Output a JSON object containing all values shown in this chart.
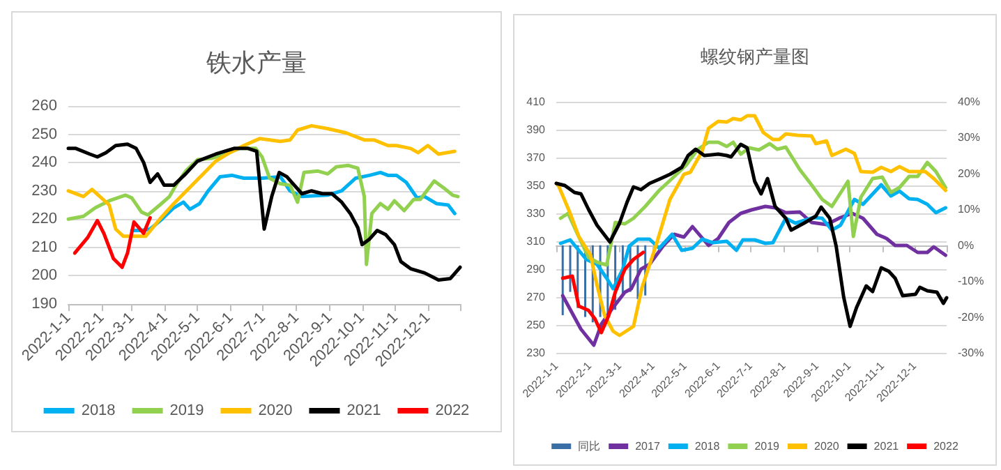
{
  "chart_data": [
    {
      "type": "line",
      "title": "铁水产量",
      "xlim": [
        "2022-01-01",
        "2022-12-31"
      ],
      "xticks": [
        {
          "value": "2022-01-01",
          "label": "2022-1-1"
        },
        {
          "value": "2022-02-01",
          "label": "2022-2-1"
        },
        {
          "value": "2022-03-01",
          "label": "2022-3-1"
        },
        {
          "value": "2022-04-01",
          "label": "2022-4-1"
        },
        {
          "value": "2022-05-01",
          "label": "2022-5-1"
        },
        {
          "value": "2022-06-01",
          "label": "2022-6-1"
        },
        {
          "value": "2022-07-01",
          "label": "2022-7-1"
        },
        {
          "value": "2022-08-01",
          "label": "2022-8-1"
        },
        {
          "value": "2022-09-01",
          "label": "2022-9-1"
        },
        {
          "value": "2022-10-01",
          "label": "2022-10-1"
        },
        {
          "value": "2022-11-01",
          "label": "2022-11-1"
        },
        {
          "value": "2022-12-01",
          "label": "2022-12-1"
        },
        {
          "value": "2022-12-31",
          "label": null
        }
      ],
      "ylim": [
        190,
        260
      ],
      "yticks": [
        190,
        200,
        210,
        220,
        230,
        240,
        250,
        260
      ],
      "grid": "y",
      "legend": "bottom",
      "marker": "none",
      "line_style": "solid",
      "series": [
        {
          "name": "2018",
          "color": "#00b0f0",
          "x": [
            "2022-03-01",
            "2022-03-10",
            "2022-03-18",
            "2022-03-29",
            "2022-04-09",
            "2022-04-18",
            "2022-04-24",
            "2022-05-03",
            "2022-05-11",
            "2022-05-22",
            "2022-06-02",
            "2022-06-13",
            "2022-06-30",
            "2022-07-17",
            "2022-07-26",
            "2022-08-06",
            "2022-08-30",
            "2022-09-12",
            "2022-09-25",
            "2022-10-08",
            "2022-10-18",
            "2022-10-25",
            "2022-11-02",
            "2022-11-11",
            "2022-11-21",
            "2022-11-28",
            "2022-12-09",
            "2022-12-20",
            "2022-12-26"
          ],
          "values": [
            216,
            216,
            216.5,
            220,
            224,
            226,
            223.5,
            225.5,
            230,
            235,
            235.5,
            234.5,
            234.5,
            235,
            230,
            228,
            228.5,
            230,
            234.5,
            235.5,
            236.5,
            235.5,
            235.5,
            233,
            227.5,
            228,
            225.5,
            225,
            222
          ]
        },
        {
          "name": "2019",
          "color": "#92d050",
          "x": [
            "2022-01-01",
            "2022-01-15",
            "2022-01-26",
            "2022-02-08",
            "2022-02-23",
            "2022-03-01",
            "2022-03-10",
            "2022-03-16",
            "2022-03-27",
            "2022-04-05",
            "2022-04-11",
            "2022-04-20",
            "2022-05-01",
            "2022-05-14",
            "2022-05-27",
            "2022-06-09",
            "2022-06-24",
            "2022-06-30",
            "2022-07-07",
            "2022-07-17",
            "2022-07-26",
            "2022-08-02",
            "2022-08-08",
            "2022-08-21",
            "2022-08-30",
            "2022-09-07",
            "2022-09-18",
            "2022-09-27",
            "2022-10-03",
            "2022-10-05",
            "2022-10-10",
            "2022-10-18",
            "2022-10-25",
            "2022-10-31",
            "2022-11-09",
            "2022-11-18",
            "2022-11-24",
            "2022-12-07",
            "2022-12-16",
            "2022-12-24",
            "2022-12-29"
          ],
          "values": [
            220,
            221,
            224,
            226.5,
            228.5,
            227.5,
            222.5,
            221.5,
            225,
            228,
            232,
            237,
            241,
            241.5,
            243,
            245,
            245,
            242,
            234.5,
            232.5,
            232,
            226,
            236.5,
            237,
            236,
            238.5,
            239,
            238,
            228,
            204,
            222,
            225.5,
            223.5,
            226.5,
            223,
            227,
            227,
            233.5,
            231,
            228.5,
            228
          ]
        },
        {
          "name": "2020",
          "color": "#ffc000",
          "x": [
            "2022-01-01",
            "2022-01-15",
            "2022-01-23",
            "2022-02-08",
            "2022-02-14",
            "2022-02-21",
            "2022-03-05",
            "2022-03-14",
            "2022-03-27",
            "2022-04-09",
            "2022-04-22",
            "2022-05-05",
            "2022-05-18",
            "2022-05-31",
            "2022-06-13",
            "2022-06-28",
            "2022-07-17",
            "2022-07-26",
            "2022-08-02",
            "2022-08-15",
            "2022-08-30",
            "2022-09-16",
            "2022-10-03",
            "2022-10-12",
            "2022-10-25",
            "2022-11-02",
            "2022-11-15",
            "2022-11-22",
            "2022-12-01",
            "2022-12-11",
            "2022-12-26"
          ],
          "values": [
            230,
            228,
            230.5,
            225,
            216.5,
            214,
            214,
            214,
            220,
            225.5,
            230.5,
            235.5,
            240.5,
            243.5,
            246,
            248.5,
            247.5,
            248,
            251.5,
            253,
            252,
            250.5,
            248,
            248,
            246,
            246,
            245,
            243.5,
            246,
            243,
            244
          ]
        },
        {
          "name": "2021",
          "color": "#000000",
          "x": [
            "2022-01-01",
            "2022-01-08",
            "2022-01-21",
            "2022-01-28",
            "2022-02-05",
            "2022-02-14",
            "2022-02-25",
            "2022-03-05",
            "2022-03-12",
            "2022-03-18",
            "2022-03-25",
            "2022-03-31",
            "2022-04-09",
            "2022-04-20",
            "2022-05-01",
            "2022-05-18",
            "2022-06-04",
            "2022-06-17",
            "2022-06-25",
            "2022-07-02",
            "2022-07-09",
            "2022-07-16",
            "2022-07-23",
            "2022-07-30",
            "2022-08-06",
            "2022-08-15",
            "2022-08-25",
            "2022-09-03",
            "2022-09-12",
            "2022-09-20",
            "2022-09-27",
            "2022-10-01",
            "2022-10-08",
            "2022-10-15",
            "2022-10-23",
            "2022-10-31",
            "2022-11-06",
            "2022-11-15",
            "2022-11-28",
            "2022-12-11",
            "2022-12-22",
            "2022-12-31"
          ],
          "values": [
            245,
            245,
            243,
            242,
            243.5,
            246,
            246.5,
            245,
            240,
            233,
            236,
            232,
            232,
            236,
            240.5,
            243,
            245,
            245,
            244,
            216.5,
            228,
            236.5,
            235,
            232,
            229,
            230,
            229,
            229,
            226,
            222,
            217,
            211,
            213,
            216,
            214.5,
            211,
            205,
            202.5,
            201,
            198.5,
            199,
            203
          ]
        },
        {
          "name": "2022",
          "color": "#ff0000",
          "x": [
            "2022-01-07",
            "2022-01-19",
            "2022-01-28",
            "2022-02-03",
            "2022-02-12",
            "2022-02-20",
            "2022-02-25",
            "2022-03-03",
            "2022-03-12",
            "2022-03-18"
          ],
          "values": [
            208,
            213.5,
            219.5,
            215,
            206,
            203,
            208,
            219,
            215,
            220.5
          ]
        }
      ]
    },
    {
      "type": "line",
      "title": "螺纹钢产量图",
      "xlim": [
        "2022-01-01",
        "2022-12-31"
      ],
      "xticks": [
        {
          "value": "2022-01-01",
          "label": "2022-1-1"
        },
        {
          "value": "2022-02-01",
          "label": "2022-2-1"
        },
        {
          "value": "2022-03-01",
          "label": "2022-3-1"
        },
        {
          "value": "2022-04-01",
          "label": "2022-4-1"
        },
        {
          "value": "2022-05-01",
          "label": "2022-5-1"
        },
        {
          "value": "2022-06-01",
          "label": "2022-6-1"
        },
        {
          "value": "2022-07-01",
          "label": "2022-7-1"
        },
        {
          "value": "2022-08-01",
          "label": "2022-8-1"
        },
        {
          "value": "2022-09-01",
          "label": "2022-9-1"
        },
        {
          "value": "2022-10-01",
          "label": "2022-10-1"
        },
        {
          "value": "2022-11-01",
          "label": "2022-11-1"
        },
        {
          "value": "2022-12-01",
          "label": "2022-12-1"
        },
        {
          "value": "2022-12-31",
          "label": null
        }
      ],
      "ylim": [
        230,
        410
      ],
      "yticks": [
        230,
        250,
        270,
        290,
        310,
        330,
        350,
        370,
        390,
        410
      ],
      "y2lim": [
        -30,
        40
      ],
      "y2ticks": [
        {
          "value": -30,
          "label": "-30%"
        },
        {
          "value": -20,
          "label": "-20%"
        },
        {
          "value": -10,
          "label": "-10%"
        },
        {
          "value": 0,
          "label": "0%"
        },
        {
          "value": 10,
          "label": "10%"
        },
        {
          "value": 20,
          "label": "20%"
        },
        {
          "value": 30,
          "label": "30%"
        },
        {
          "value": 40,
          "label": "40%"
        }
      ],
      "grid": "y",
      "legend": "bottom",
      "marker": "none",
      "line_style": "solid",
      "series": [
        {
          "name": "同比",
          "type": "bar",
          "axis": "y2",
          "color": "#3a6ea5",
          "x": [
            "2022-01-07",
            "2022-01-14",
            "2022-01-21",
            "2022-01-28",
            "2022-02-04",
            "2022-02-11",
            "2022-02-18",
            "2022-02-25",
            "2022-03-04",
            "2022-03-11",
            "2022-03-18",
            "2022-03-25"
          ],
          "values": [
            -19.5,
            -13,
            -17.5,
            -20,
            -21.5,
            -20,
            -22,
            -18,
            -14,
            -13,
            -15,
            -14
          ]
        },
        {
          "name": "2017",
          "color": "#7030a0",
          "x": [
            "2022-01-07",
            "2022-01-24",
            "2022-02-05",
            "2022-02-12",
            "2022-02-21",
            "2022-03-06",
            "2022-03-12",
            "2022-03-21",
            "2022-03-29",
            "2022-04-11",
            "2022-04-21",
            "2022-04-30",
            "2022-05-08",
            "2022-05-23",
            "2022-06-01",
            "2022-06-11",
            "2022-06-22",
            "2022-07-02",
            "2022-07-15",
            "2022-07-24",
            "2022-08-03",
            "2022-08-16",
            "2022-08-27",
            "2022-09-10",
            "2022-09-23",
            "2022-10-04",
            "2022-10-14",
            "2022-10-27",
            "2022-11-05",
            "2022-11-13",
            "2022-11-24",
            "2022-12-04",
            "2022-12-13",
            "2022-12-19",
            "2022-12-30"
          ],
          "values": [
            271,
            247,
            235.5,
            250.5,
            260.5,
            273.5,
            276,
            290,
            293.5,
            307,
            315,
            313,
            320.5,
            307,
            312,
            323.5,
            330,
            332.5,
            335,
            334,
            330.5,
            331,
            323.5,
            322,
            327,
            330,
            326.5,
            315,
            312,
            307,
            307,
            302,
            302,
            306,
            300
          ]
        },
        {
          "name": "2018",
          "color": "#00b0f0",
          "x": [
            "2022-01-05",
            "2022-01-14",
            "2022-01-22",
            "2022-01-29",
            "2022-02-08",
            "2022-02-17",
            "2022-02-23",
            "2022-03-04",
            "2022-03-10",
            "2022-03-18",
            "2022-03-29",
            "2022-04-07",
            "2022-04-19",
            "2022-04-28",
            "2022-05-08",
            "2022-05-17",
            "2022-05-27",
            "2022-06-09",
            "2022-06-18",
            "2022-06-24",
            "2022-07-05",
            "2022-07-15",
            "2022-07-22",
            "2022-08-03",
            "2022-08-12",
            "2022-08-29",
            "2022-09-06",
            "2022-09-15",
            "2022-09-23",
            "2022-10-06",
            "2022-10-14",
            "2022-10-31",
            "2022-11-09",
            "2022-11-17",
            "2022-11-26",
            "2022-12-04",
            "2022-12-13",
            "2022-12-21",
            "2022-12-30"
          ],
          "values": [
            308.5,
            311,
            303.5,
            297,
            293.5,
            283.5,
            276,
            290,
            306.5,
            311.5,
            311.5,
            305,
            315,
            303.5,
            305,
            311.5,
            309,
            310,
            303.5,
            311,
            311,
            308.5,
            309,
            326.5,
            323,
            327,
            326.5,
            318,
            321.5,
            340,
            336.5,
            350.5,
            342.5,
            346,
            340.5,
            340,
            336.5,
            330.5,
            334
          ]
        },
        {
          "name": "2019",
          "color": "#92d050",
          "x": [
            "2022-01-05",
            "2022-01-12",
            "2022-01-20",
            "2022-01-31",
            "2022-02-08",
            "2022-02-17",
            "2022-02-25",
            "2022-03-06",
            "2022-03-14",
            "2022-03-25",
            "2022-04-07",
            "2022-04-19",
            "2022-05-02",
            "2022-05-13",
            "2022-05-23",
            "2022-06-01",
            "2022-06-09",
            "2022-06-15",
            "2022-06-22",
            "2022-06-30",
            "2022-07-09",
            "2022-07-19",
            "2022-07-26",
            "2022-08-03",
            "2022-08-16",
            "2022-08-27",
            "2022-09-06",
            "2022-09-15",
            "2022-09-30",
            "2022-10-05",
            "2022-10-12",
            "2022-10-23",
            "2022-11-01",
            "2022-11-09",
            "2022-11-17",
            "2022-11-26",
            "2022-12-04",
            "2022-12-13",
            "2022-12-21",
            "2022-12-30"
          ],
          "values": [
            326.5,
            330,
            316.5,
            298.5,
            295,
            293,
            323.5,
            322.5,
            326.5,
            335,
            346.5,
            355,
            364.5,
            376,
            381,
            381,
            378,
            381,
            372.5,
            377,
            375.5,
            380,
            376,
            377.5,
            361.5,
            350.5,
            340,
            335,
            353,
            313.5,
            341.5,
            355,
            356,
            345,
            348.5,
            356.5,
            356.5,
            366.5,
            360,
            348.5
          ]
        },
        {
          "name": "2020",
          "color": "#ffc000",
          "x": [
            "2022-01-01",
            "2022-01-03",
            "2022-01-14",
            "2022-01-22",
            "2022-02-02",
            "2022-02-08",
            "2022-02-15",
            "2022-02-23",
            "2022-03-01",
            "2022-03-14",
            "2022-03-22",
            "2022-04-04",
            "2022-04-17",
            "2022-04-30",
            "2022-05-06",
            "2022-05-17",
            "2022-05-23",
            "2022-06-01",
            "2022-06-09",
            "2022-06-15",
            "2022-06-22",
            "2022-06-28",
            "2022-07-05",
            "2022-07-13",
            "2022-07-22",
            "2022-07-28",
            "2022-08-03",
            "2022-08-14",
            "2022-08-27",
            "2022-08-31",
            "2022-09-10",
            "2022-09-15",
            "2022-09-28",
            "2022-10-06",
            "2022-10-12",
            "2022-10-23",
            "2022-10-31",
            "2022-11-09",
            "2022-11-17",
            "2022-11-26",
            "2022-12-11",
            "2022-12-19",
            "2022-12-30"
          ],
          "values": [
            351.5,
            350,
            330,
            313.5,
            300,
            278.5,
            257,
            245.5,
            242.5,
            249,
            277,
            307,
            340,
            358,
            359.5,
            374.5,
            391,
            396,
            395.5,
            398,
            397,
            400,
            400,
            388,
            383,
            383,
            387,
            386,
            385.5,
            380,
            382,
            371.5,
            376,
            373,
            360,
            359.5,
            363,
            360,
            363.5,
            360,
            360,
            355,
            346.5
          ]
        },
        {
          "name": "2021",
          "color": "#000000",
          "x": [
            "2022-01-01",
            "2022-01-09",
            "2022-01-18",
            "2022-01-24",
            "2022-01-31",
            "2022-02-08",
            "2022-02-20",
            "2022-03-01",
            "2022-03-08",
            "2022-03-14",
            "2022-03-21",
            "2022-03-29",
            "2022-04-07",
            "2022-04-17",
            "2022-04-28",
            "2022-05-04",
            "2022-05-11",
            "2022-05-19",
            "2022-06-01",
            "2022-06-09",
            "2022-06-13",
            "2022-06-22",
            "2022-06-28",
            "2022-07-05",
            "2022-07-11",
            "2022-07-17",
            "2022-07-24",
            "2022-08-03",
            "2022-08-08",
            "2022-08-20",
            "2022-08-31",
            "2022-09-05",
            "2022-09-13",
            "2022-09-19",
            "2022-09-26",
            "2022-10-02",
            "2022-10-08",
            "2022-10-17",
            "2022-10-23",
            "2022-10-31",
            "2022-11-07",
            "2022-11-13",
            "2022-11-20",
            "2022-12-02",
            "2022-12-06",
            "2022-12-13",
            "2022-12-22",
            "2022-12-28",
            "2022-12-31"
          ],
          "values": [
            351.5,
            350,
            345,
            344,
            333,
            321.5,
            309.5,
            323,
            338,
            349,
            347,
            351.5,
            354.5,
            358,
            363,
            371.5,
            376,
            371.5,
            372.5,
            371.5,
            370.5,
            379.5,
            377,
            353,
            344,
            355,
            335,
            326.5,
            318,
            323,
            328,
            334.5,
            326.5,
            306.5,
            270,
            249,
            262.5,
            278,
            274,
            291,
            288.5,
            283.5,
            271,
            272,
            277,
            274.5,
            273.5,
            265.5,
            269.5
          ]
        },
        {
          "name": "2022",
          "color": "#ff0000",
          "x": [
            "2022-01-07",
            "2022-01-16",
            "2022-01-22",
            "2022-01-31",
            "2022-02-06",
            "2022-02-12",
            "2022-02-19",
            "2022-02-25",
            "2022-03-06",
            "2022-03-14",
            "2022-03-23"
          ],
          "values": [
            283.5,
            285,
            263.5,
            260.5,
            254.5,
            244.5,
            257,
            273.5,
            290,
            297,
            302
          ]
        }
      ]
    }
  ]
}
